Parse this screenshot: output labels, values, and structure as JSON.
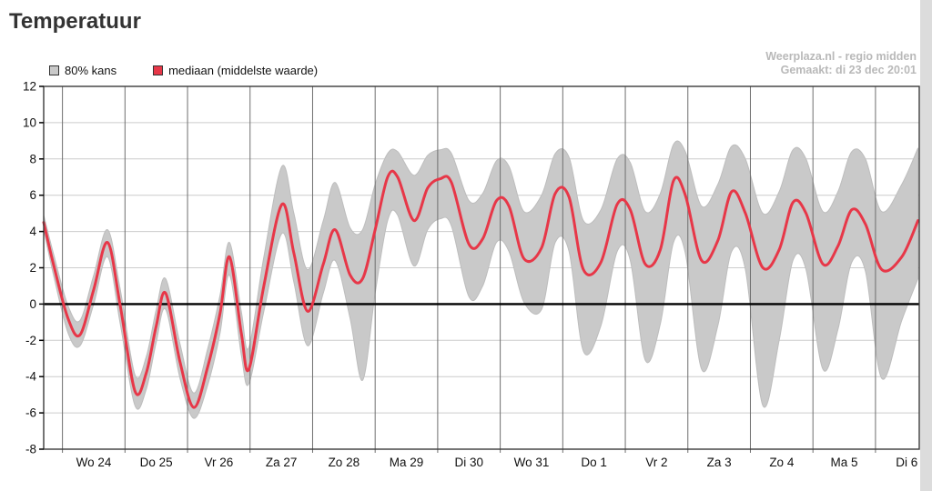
{
  "page": {
    "title": "Temperatuur"
  },
  "watermark": {
    "line1": "Weerplaza.nl - regio midden",
    "line2": "Gemaakt: di 23 dec 20:01"
  },
  "legend": {
    "band": {
      "label": "80% kans",
      "color": "#c9c9c9"
    },
    "median": {
      "label": "mediaan (middelste waarde)",
      "color": "#e73748"
    }
  },
  "chart_data": {
    "type": "line",
    "title": "Temperatuur",
    "xlabel": "",
    "ylabel": "",
    "ylim": [
      -8,
      12
    ],
    "yticks": [
      12,
      10,
      8,
      6,
      4,
      2,
      0,
      -2,
      -4,
      -6,
      -8
    ],
    "x_domain": [
      0,
      14
    ],
    "grid": true,
    "legend_position": "top-left",
    "day_labels": [
      "Wo 24",
      "Do 25",
      "Vr 26",
      "Za 27",
      "Zo 28",
      "Ma 29",
      "Di 30",
      "Wo 31",
      "Do 1",
      "Vr 2",
      "Za 3",
      "Zo 4",
      "Ma 5",
      "Di 6"
    ],
    "day_gridline_offset": 0.3,
    "series": {
      "x": [
        0,
        0.17,
        0.39,
        0.58,
        0.8,
        1.02,
        1.22,
        1.46,
        1.64,
        1.8,
        1.95,
        2.18,
        2.4,
        2.62,
        2.82,
        2.97,
        3.16,
        3.28,
        3.52,
        3.81,
        4.0,
        4.22,
        4.47,
        4.66,
        4.9,
        5.1,
        5.3,
        5.5,
        5.66,
        5.92,
        6.14,
        6.34,
        6.52,
        6.8,
        7.02,
        7.24,
        7.44,
        7.68,
        7.96,
        8.18,
        8.4,
        8.63,
        8.91,
        9.17,
        9.38,
        9.62,
        9.86,
        10.07,
        10.26,
        10.52,
        10.78,
        11.0,
        11.22,
        11.5,
        11.76,
        11.98,
        12.19,
        12.46,
        12.7,
        12.92,
        13.14,
        13.4,
        13.72,
        13.98
      ],
      "median": [
        4.5,
        2.0,
        -0.8,
        -1.7,
        0.8,
        3.4,
        0.0,
        -4.8,
        -3.8,
        -1.2,
        0.6,
        -3.2,
        -5.7,
        -3.5,
        -0.5,
        2.6,
        -1.6,
        -3.6,
        1.0,
        5.5,
        2.8,
        -0.4,
        2.2,
        4.1,
        1.6,
        1.4,
        4.1,
        7.0,
        7.0,
        4.6,
        6.4,
        6.9,
        6.7,
        3.3,
        3.6,
        5.7,
        5.4,
        2.5,
        3.1,
        6.1,
        5.9,
        1.9,
        2.3,
        5.5,
        5.2,
        2.2,
        3.0,
        6.8,
        6.0,
        2.4,
        3.5,
        6.2,
        5.0,
        2.0,
        3.0,
        5.6,
        5.0,
        2.2,
        3.2,
        5.2,
        4.4,
        1.9,
        2.6,
        4.6
      ],
      "upper": [
        4.9,
        2.6,
        -0.1,
        -0.9,
        1.6,
        4.1,
        0.9,
        -3.9,
        -2.9,
        -0.3,
        1.4,
        -2.2,
        -4.9,
        -2.5,
        0.5,
        3.4,
        -0.4,
        -2.4,
        2.6,
        7.6,
        5.0,
        1.9,
        4.6,
        6.7,
        4.2,
        4.1,
        6.6,
        8.3,
        8.4,
        7.1,
        8.2,
        8.5,
        8.3,
        5.7,
        6.1,
        7.9,
        7.6,
        5.1,
        6.0,
        8.3,
        8.1,
        4.6,
        5.2,
        8.0,
        7.8,
        5.1,
        6.1,
        8.8,
        8.4,
        5.4,
        6.6,
        8.7,
        8.0,
        5.0,
        6.2,
        8.5,
        8.0,
        5.1,
        6.2,
        8.4,
        8.0,
        5.1,
        6.6,
        8.6
      ],
      "lower": [
        4.1,
        1.4,
        -1.6,
        -2.3,
        0.0,
        2.6,
        -1.0,
        -5.6,
        -4.7,
        -2.1,
        -0.3,
        -4.1,
        -6.3,
        -4.5,
        -1.6,
        1.6,
        -2.8,
        -4.4,
        -0.4,
        3.9,
        1.2,
        -2.3,
        0.6,
        2.4,
        -0.8,
        -4.2,
        0.6,
        4.6,
        4.9,
        2.1,
        4.1,
        4.7,
        4.3,
        0.4,
        1.0,
        3.4,
        2.9,
        0.1,
        -0.3,
        3.4,
        2.9,
        -2.6,
        -1.2,
        2.9,
        2.4,
        -3.1,
        -1.1,
        3.4,
        2.8,
        -3.6,
        -1.2,
        2.9,
        1.9,
        -5.6,
        -2.0,
        2.4,
        1.9,
        -3.6,
        -1.4,
        2.3,
        1.8,
        -4.1,
        -0.9,
        1.4
      ]
    },
    "series_labels": [
      {
        "name": "80% kans",
        "style": "gray uncertainty band between upper and lower"
      },
      {
        "name": "mediaan (middelste waarde)",
        "style": "red line"
      }
    ],
    "colors": {
      "band": "#c9c9c9",
      "band_edge": "#bdbdbd",
      "median": "#e73748",
      "zero_line": "#000000",
      "grid_h": "#cccccc",
      "grid_v": "#6e6e6e",
      "frame": "#3a3a3a",
      "tick_label": "#111111"
    }
  }
}
